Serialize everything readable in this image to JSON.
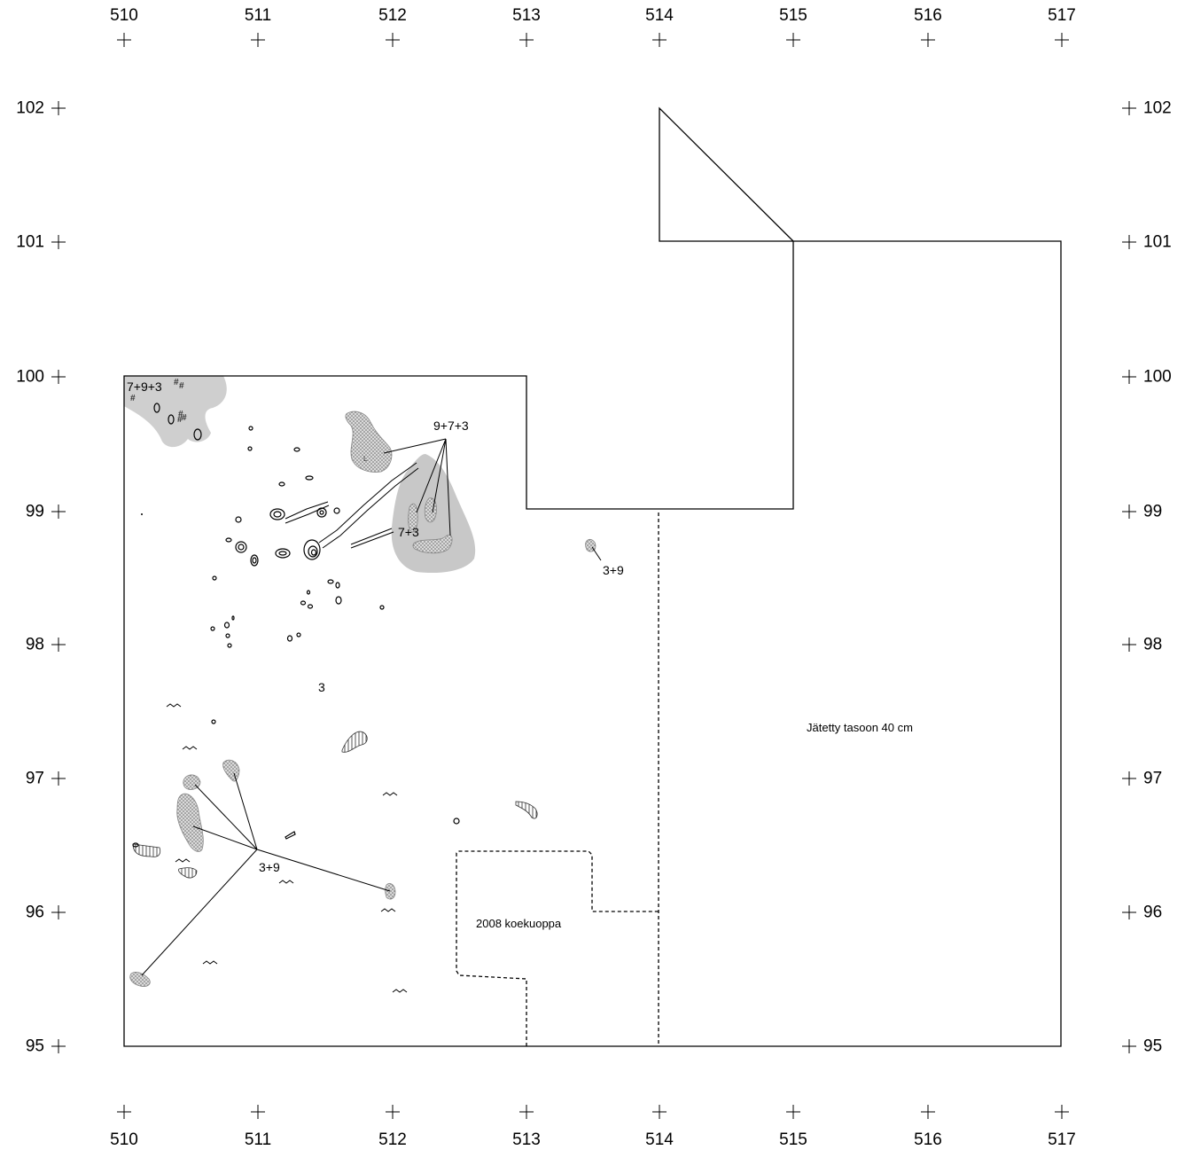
{
  "axes": {
    "x_labels": [
      "510",
      "511",
      "512",
      "513",
      "514",
      "515",
      "516",
      "517"
    ],
    "y_labels": [
      "102",
      "101",
      "100",
      "99",
      "98",
      "97",
      "96",
      "95"
    ]
  },
  "annotations": {
    "a_7_9_3": "7+9+3",
    "a_9_7_3": "9+7+3",
    "a_7_3": "7+3",
    "a_3_9_upper": "3+9",
    "a_3": "3",
    "a_3_9_lower": "3+9"
  },
  "notes": {
    "test_pit": "2008 koekuoppa",
    "left_at_level": "Jätetty tasoon 40 cm"
  },
  "colors": {
    "line": "#000000",
    "grey_area": "#c8c8c8",
    "stipple_fill": "#d4d4d4"
  }
}
